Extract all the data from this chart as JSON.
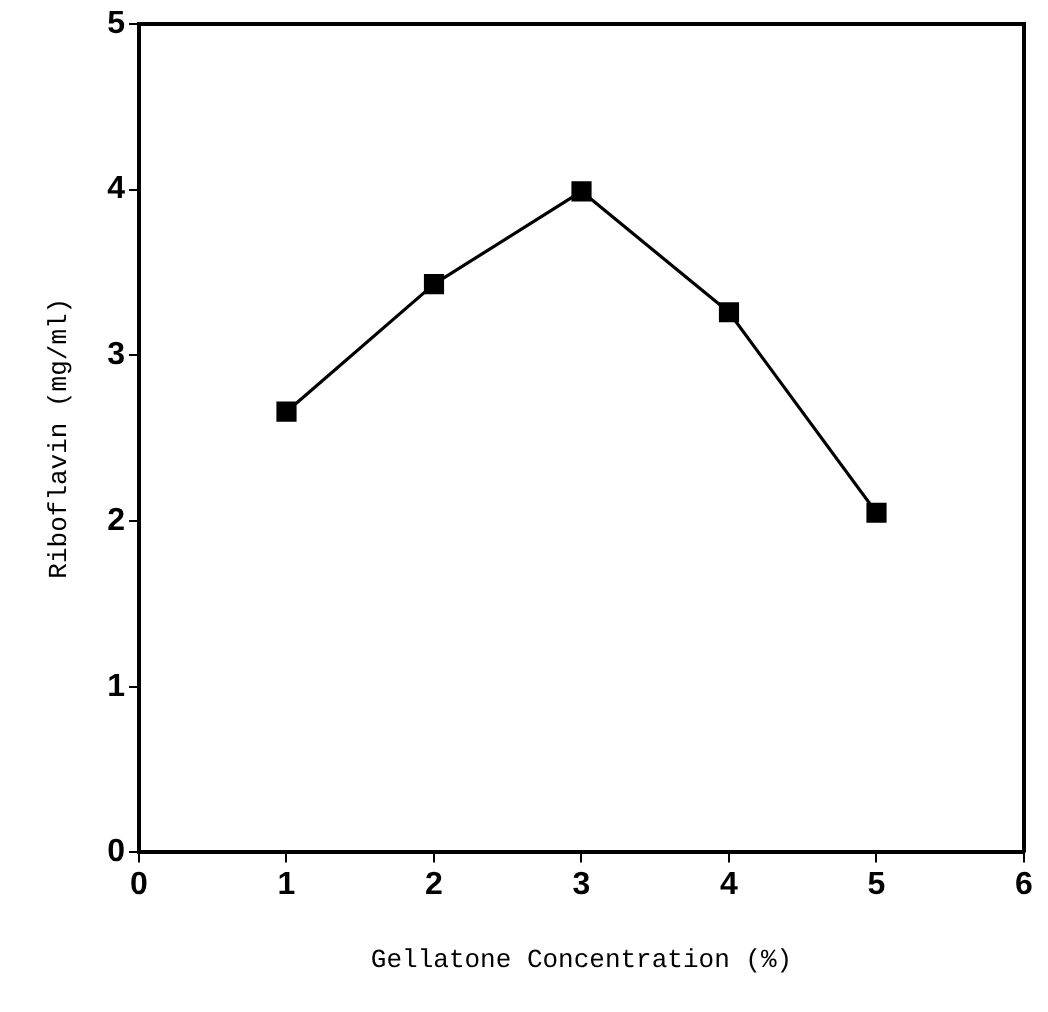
{
  "chart_data": {
    "type": "line",
    "xlabel": "Gellatone Concentration (%)",
    "ylabel": "Riboflavin (mg/ml)",
    "x": [
      1,
      2,
      3,
      4,
      5
    ],
    "series": [
      {
        "color": "#000000",
        "values": [
          2.66,
          3.43,
          3.99,
          3.26,
          2.05
        ]
      }
    ],
    "xlim": [
      0,
      6
    ],
    "xticks": [
      0,
      1,
      2,
      3,
      4,
      5,
      6
    ],
    "ylim": [
      0,
      5
    ],
    "yticks": [
      0,
      1,
      2,
      3,
      4,
      5
    ],
    "grid": false,
    "legend": false,
    "marker": "square",
    "line_style": "solid"
  }
}
